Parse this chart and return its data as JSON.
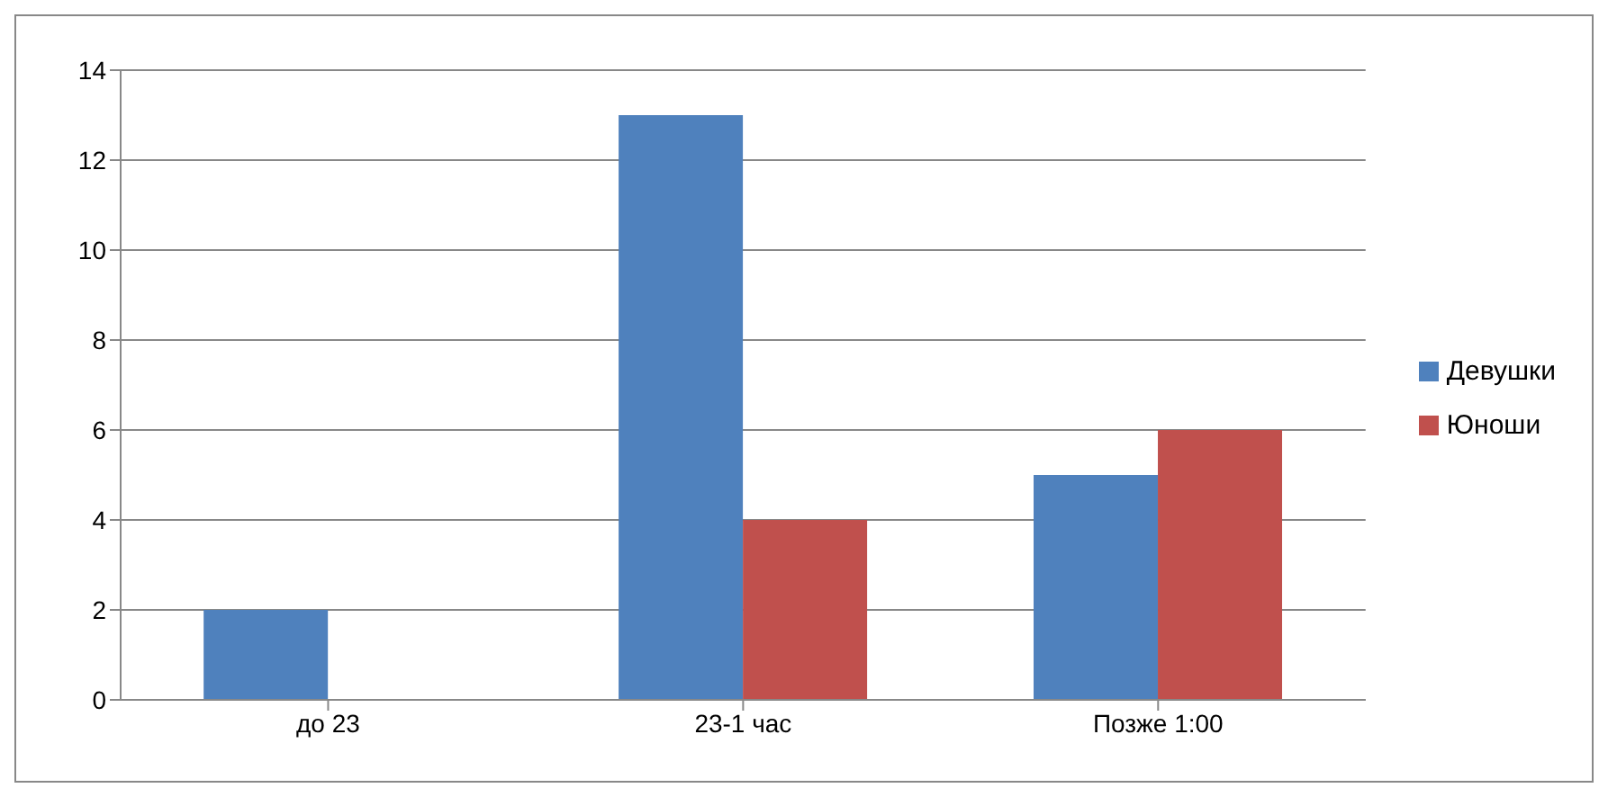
{
  "chart_data": {
    "type": "bar",
    "categories": [
      "до 23",
      "23-1 час",
      "Позже 1:00"
    ],
    "series": [
      {
        "name": "Девушки",
        "color": "#4f81bd",
        "values": [
          2,
          13,
          5
        ]
      },
      {
        "name": "Юноши",
        "color": "#c0504d",
        "values": [
          0,
          4,
          6
        ]
      }
    ],
    "ylim": [
      0,
      14
    ],
    "yticks": [
      0,
      2,
      4,
      6,
      8,
      10,
      12,
      14
    ],
    "grid": "y",
    "legend": "right"
  }
}
